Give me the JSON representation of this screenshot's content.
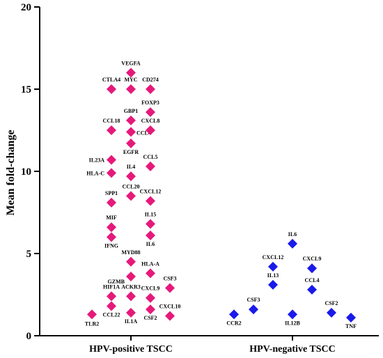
{
  "chart_data": {
    "type": "scatter",
    "title": "",
    "xlabel": "",
    "ylabel": "Mean fold-change",
    "ylim": [
      0,
      20
    ],
    "yticks": [
      0,
      5,
      10,
      15,
      20
    ],
    "grid": false,
    "categories": [
      "HPV-positive TSCC",
      "HPV-negative TSCC"
    ],
    "series": [
      {
        "category": "HPV-positive TSCC",
        "color": "#e6197a",
        "points": [
          {
            "label": "VEGFA",
            "y": 16.0,
            "col": 0
          },
          {
            "label": "CTLA4",
            "y": 15.0,
            "col": -1
          },
          {
            "label": "MYC",
            "y": 15.0,
            "col": 0
          },
          {
            "label": "CD274",
            "y": 15.0,
            "col": 1
          },
          {
            "label": "GBP1",
            "y": 13.1,
            "col": 0
          },
          {
            "label": "FOXP3",
            "y": 13.6,
            "col": 1
          },
          {
            "label": "CCL18",
            "y": 12.5,
            "col": -1
          },
          {
            "label": "CCL4",
            "y": 12.4,
            "col": 0
          },
          {
            "label": "CXCL8",
            "y": 12.5,
            "col": 1
          },
          {
            "label": "EGFR",
            "y": 11.7,
            "col": 0
          },
          {
            "label": "IL23A",
            "y": 10.7,
            "col": -1
          },
          {
            "label": "CCL5",
            "y": 10.3,
            "col": 1
          },
          {
            "label": "HLA-C",
            "y": 9.9,
            "col": -1
          },
          {
            "label": "IL4",
            "y": 9.7,
            "col": 0
          },
          {
            "label": "CCL20",
            "y": 8.5,
            "col": 0
          },
          {
            "label": "SPP1",
            "y": 8.1,
            "col": -1
          },
          {
            "label": "CXCL12",
            "y": 8.2,
            "col": 1
          },
          {
            "label": "IL15",
            "y": 6.8,
            "col": 1
          },
          {
            "label": "MIF",
            "y": 6.6,
            "col": -1
          },
          {
            "label": "IL6",
            "y": 6.1,
            "col": 1
          },
          {
            "label": "IFNG",
            "y": 6.0,
            "col": -1
          },
          {
            "label": "MYD88",
            "y": 4.5,
            "col": 0
          },
          {
            "label": "HLA-A",
            "y": 3.8,
            "col": 1
          },
          {
            "label": "GZMB",
            "y": 3.6,
            "col": 0
          },
          {
            "label": "CSF3",
            "y": 2.9,
            "col": 2
          },
          {
            "label": "HIF1A",
            "y": 2.4,
            "col": -1
          },
          {
            "label": "ACKR3",
            "y": 2.4,
            "col": 0
          },
          {
            "label": "CXCL9",
            "y": 2.3,
            "col": 1
          },
          {
            "label": "CCL22",
            "y": 1.8,
            "col": -1
          },
          {
            "label": "CSF2",
            "y": 1.6,
            "col": 1
          },
          {
            "label": "IL1A",
            "y": 1.4,
            "col": 0
          },
          {
            "label": "TLR2",
            "y": 1.3,
            "col": -2
          },
          {
            "label": "CXCL10",
            "y": 1.2,
            "col": 2
          }
        ]
      },
      {
        "category": "HPV-negative TSCC",
        "color": "#1a1aeb",
        "points": [
          {
            "label": "IL6",
            "y": 5.6,
            "col": 0
          },
          {
            "label": "CXCL12",
            "y": 4.2,
            "col": -1
          },
          {
            "label": "CXCL9",
            "y": 4.1,
            "col": 1
          },
          {
            "label": "IL13",
            "y": 3.1,
            "col": -1
          },
          {
            "label": "CCL4",
            "y": 2.8,
            "col": 1
          },
          {
            "label": "CSF3",
            "y": 1.6,
            "col": -2
          },
          {
            "label": "CSF2",
            "y": 1.4,
            "col": 2
          },
          {
            "label": "CCR2",
            "y": 1.3,
            "col": -3
          },
          {
            "label": "IL12B",
            "y": 1.3,
            "col": 0
          },
          {
            "label": "TNF",
            "y": 1.1,
            "col": 3
          }
        ]
      }
    ]
  }
}
